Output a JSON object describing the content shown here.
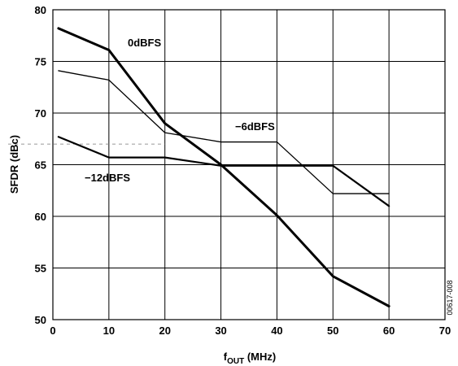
{
  "chart_data": {
    "type": "line",
    "xlabel_main": "f",
    "xlabel_sub": "OUT",
    "xlabel_unit": " (MHz)",
    "ylabel": "SFDR (dBc)",
    "xlim": [
      0,
      70
    ],
    "ylim": [
      50,
      80
    ],
    "x_ticks": [
      "0",
      "10",
      "20",
      "30",
      "40",
      "50",
      "60",
      "70"
    ],
    "y_ticks": [
      "50",
      "55",
      "60",
      "65",
      "70",
      "75",
      "80"
    ],
    "grid": true,
    "figure_id": "00617-008",
    "series": [
      {
        "name": "0dBFS",
        "line_style": "heavy",
        "x": [
          1,
          10,
          20,
          30,
          40,
          50,
          60
        ],
        "y": [
          78.2,
          76.1,
          69.0,
          65.0,
          60.1,
          54.2,
          51.3
        ]
      },
      {
        "name": "−6dBFS",
        "line_style": "thin",
        "x": [
          1,
          10,
          20,
          30,
          40,
          50,
          60
        ],
        "y": [
          74.1,
          73.2,
          68.1,
          67.2,
          67.2,
          62.2,
          62.2
        ]
      },
      {
        "name": "−12dBFS",
        "line_style": "medium",
        "x": [
          1,
          10,
          20,
          30,
          40,
          50,
          60
        ],
        "y": [
          67.7,
          65.7,
          65.7,
          64.9,
          64.9,
          64.9,
          61.0
        ]
      }
    ]
  }
}
